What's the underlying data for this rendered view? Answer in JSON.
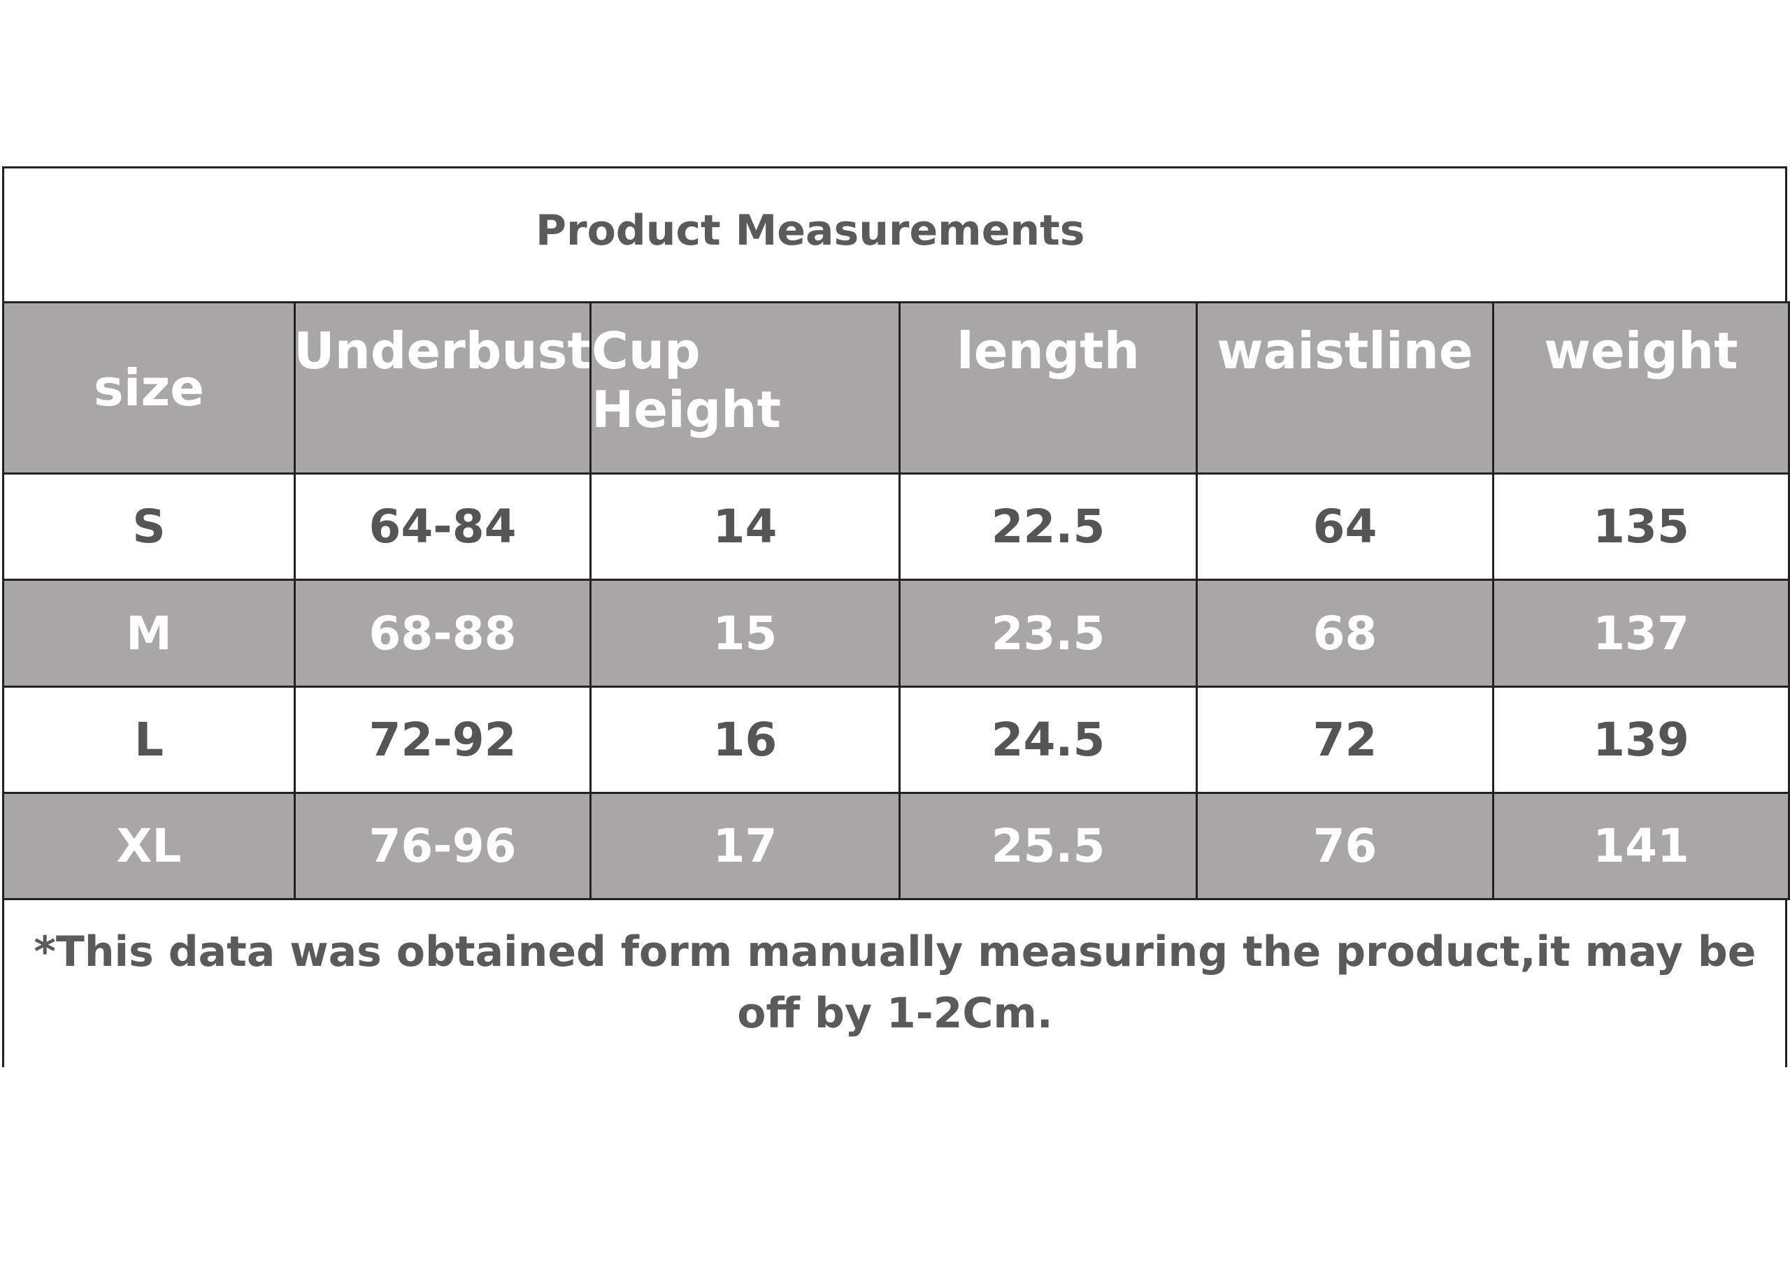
{
  "title": "Product Measurements",
  "table": {
    "header": [
      "size",
      "Underbust",
      "Cup Height",
      "length",
      "waistline",
      "weight"
    ],
    "rows": [
      [
        "S",
        "64-84",
        "14",
        "22.5",
        "64",
        "135"
      ],
      [
        "M",
        "68-88",
        "15",
        "23.5",
        "68",
        "137"
      ],
      [
        "L",
        "72-92",
        "16",
        "24.5",
        "72",
        "139"
      ],
      [
        "XL",
        "76-96",
        "17",
        "25.5",
        "76",
        "141"
      ]
    ]
  },
  "note": "*This data was obtained form manually measuring the product,it may be off by 1-2Cm."
}
